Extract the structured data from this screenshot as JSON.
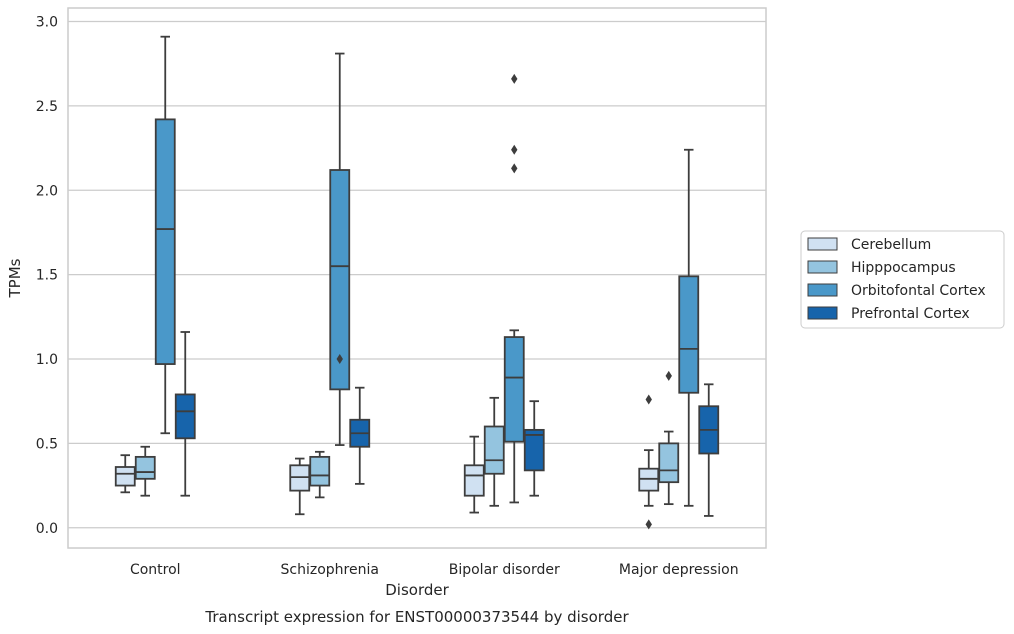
{
  "chart_data": {
    "type": "box",
    "title": "Transcript expression for ENST00000373544 by disorder",
    "xlabel": "Disorder",
    "ylabel": "TPMs",
    "ylim": [
      -0.12,
      3.08
    ],
    "yticks": [
      0.0,
      0.5,
      1.0,
      1.5,
      2.0,
      2.5,
      3.0
    ],
    "ytick_labels": [
      "0.0",
      "0.5",
      "1.0",
      "1.5",
      "2.0",
      "2.5",
      "3.0"
    ],
    "grid": "horizontal",
    "legend_position": "right",
    "categories": [
      "Control",
      "Schizophrenia",
      "Bipolar disorder",
      "Major depression"
    ],
    "series": [
      {
        "name": "Cerebellum",
        "color": "#d0e1f2",
        "boxes": [
          {
            "whislo": 0.21,
            "q1": 0.25,
            "med": 0.32,
            "q3": 0.36,
            "whishi": 0.43,
            "fliers": []
          },
          {
            "whislo": 0.08,
            "q1": 0.22,
            "med": 0.3,
            "q3": 0.37,
            "whishi": 0.41,
            "fliers": []
          },
          {
            "whislo": 0.09,
            "q1": 0.19,
            "med": 0.31,
            "q3": 0.37,
            "whishi": 0.54,
            "fliers": []
          },
          {
            "whislo": 0.13,
            "q1": 0.22,
            "med": 0.29,
            "q3": 0.35,
            "whishi": 0.46,
            "fliers": [
              0.02,
              0.76
            ]
          }
        ]
      },
      {
        "name": "Hipppocampus",
        "color": "#94c4df",
        "boxes": [
          {
            "whislo": 0.19,
            "q1": 0.29,
            "med": 0.33,
            "q3": 0.42,
            "whishi": 0.48,
            "fliers": []
          },
          {
            "whislo": 0.18,
            "q1": 0.25,
            "med": 0.31,
            "q3": 0.42,
            "whishi": 0.45,
            "fliers": []
          },
          {
            "whislo": 0.13,
            "q1": 0.32,
            "med": 0.4,
            "q3": 0.6,
            "whishi": 0.77,
            "fliers": []
          },
          {
            "whislo": 0.14,
            "q1": 0.27,
            "med": 0.34,
            "q3": 0.5,
            "whishi": 0.57,
            "fliers": [
              0.9
            ]
          }
        ]
      },
      {
        "name": "Orbitofontal Cortex",
        "color": "#4a98c9",
        "boxes": [
          {
            "whislo": 0.56,
            "q1": 0.97,
            "med": 1.77,
            "q3": 2.42,
            "whishi": 2.91,
            "fliers": []
          },
          {
            "whislo": 0.49,
            "q1": 0.82,
            "med": 1.55,
            "q3": 2.12,
            "whishi": 2.81,
            "fliers": [
              1.0
            ]
          },
          {
            "whislo": 0.15,
            "q1": 0.51,
            "med": 0.89,
            "q3": 1.13,
            "whishi": 1.17,
            "fliers": [
              2.13,
              2.24,
              2.66
            ]
          },
          {
            "whislo": 0.13,
            "q1": 0.8,
            "med": 1.06,
            "q3": 1.49,
            "whishi": 2.24,
            "fliers": []
          }
        ]
      },
      {
        "name": "Prefrontal Cortex",
        "color": "#1764ab",
        "boxes": [
          {
            "whislo": 0.19,
            "q1": 0.53,
            "med": 0.69,
            "q3": 0.79,
            "whishi": 1.16,
            "fliers": []
          },
          {
            "whislo": 0.26,
            "q1": 0.48,
            "med": 0.56,
            "q3": 0.64,
            "whishi": 0.83,
            "fliers": []
          },
          {
            "whislo": 0.19,
            "q1": 0.34,
            "med": 0.55,
            "q3": 0.58,
            "whishi": 0.75,
            "fliers": []
          },
          {
            "whislo": 0.07,
            "q1": 0.44,
            "med": 0.58,
            "q3": 0.72,
            "whishi": 0.85,
            "fliers": []
          }
        ]
      }
    ]
  }
}
